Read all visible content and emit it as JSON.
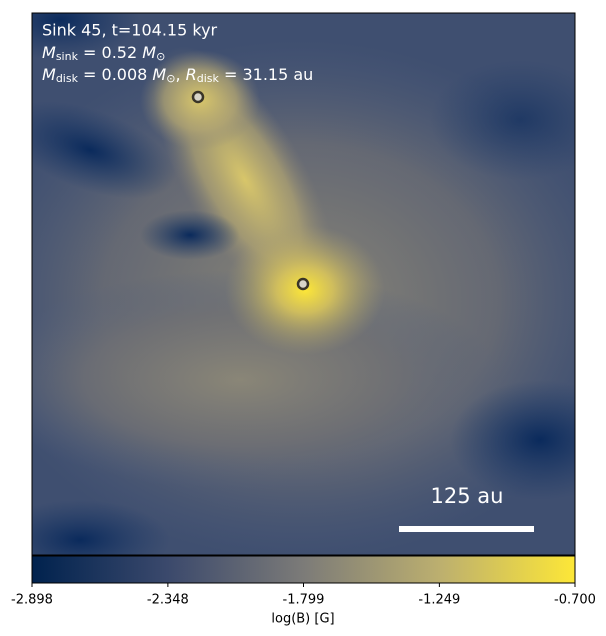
{
  "chart_data": {
    "type": "image",
    "title": "Sink 45, t=104.15 kyr",
    "sink_mass": [
      {
        "text": "M",
        "style": "italic"
      },
      {
        "text": "sink",
        "style": "sub"
      },
      {
        "text": " = 0.52 ",
        "style": "plain"
      },
      {
        "text": "M",
        "style": "italic"
      },
      {
        "text": "⊙",
        "style": "sub"
      }
    ],
    "disk": [
      {
        "text": "M",
        "style": "italic"
      },
      {
        "text": "disk",
        "style": "sub"
      },
      {
        "text": " = 0.008 ",
        "style": "plain"
      },
      {
        "text": "M",
        "style": "italic"
      },
      {
        "text": "⊙",
        "style": "sub"
      },
      {
        "text": ", ",
        "style": "plain"
      },
      {
        "text": "R",
        "style": "italic"
      },
      {
        "text": "disk",
        "style": "sub"
      },
      {
        "text": " = 31.15 au",
        "style": "plain"
      }
    ],
    "scale_bar": "125 au",
    "colorbar_label": "log(B) [G]",
    "clim": [
      -2.898,
      -0.7
    ],
    "cticks": [
      -2.898,
      -2.348,
      -1.799,
      -1.249,
      {
        "value": -0.7,
        "label": "-0.700"
      }
    ],
    "colormap": [
      "#00224e",
      "#3b496c",
      "#7c7b78",
      "#bcaf6f",
      "#fde737"
    ]
  }
}
